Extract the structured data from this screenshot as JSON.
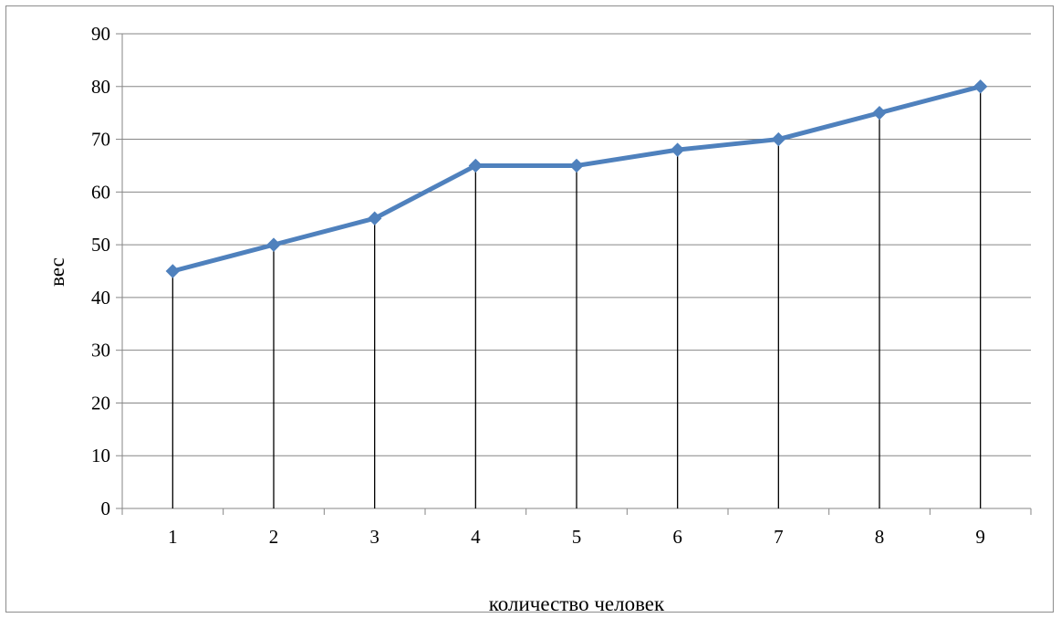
{
  "chart_data": {
    "type": "line",
    "title": "",
    "xlabel": "количество человек",
    "ylabel": "вес",
    "categories": [
      "1",
      "2",
      "3",
      "4",
      "5",
      "6",
      "7",
      "8",
      "9"
    ],
    "series": [
      {
        "values": [
          45,
          50,
          55,
          65,
          65,
          68,
          70,
          75,
          80
        ]
      }
    ],
    "ylim": [
      0,
      90
    ],
    "yticks": [
      "0",
      "10",
      "20",
      "30",
      "40",
      "50",
      "60",
      "70",
      "80",
      "90"
    ],
    "grid": "horizontal",
    "drop_lines": true,
    "marker": "diamond",
    "legend": "none",
    "colors": {
      "line": "#4f81bd",
      "marker": "#4f81bd",
      "drop_line": "#000000",
      "grid": "#868686",
      "axis": "#868686"
    }
  }
}
